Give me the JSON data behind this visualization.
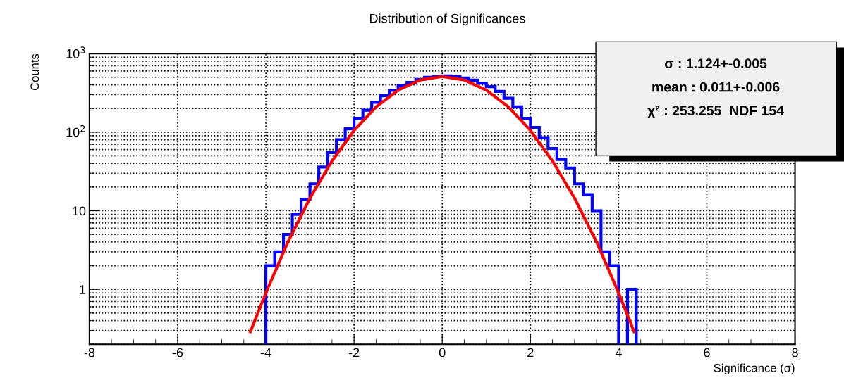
{
  "chart_data": {
    "type": "histogram",
    "title": "Distribution of Significances",
    "xlabel": "Significance (σ)",
    "ylabel": "Counts",
    "bins": [
      -4.0,
      -3.8,
      -3.6,
      -3.4,
      -3.2,
      -3.0,
      -2.8,
      -2.6,
      -2.4,
      -2.2,
      -2.0,
      -1.8,
      -1.6,
      -1.4,
      -1.2,
      -1.0,
      -0.8,
      -0.6,
      -0.4,
      -0.2,
      0.0,
      0.2,
      0.4,
      0.6,
      0.8,
      1.0,
      1.2,
      1.4,
      1.6,
      1.8,
      2.0,
      2.2,
      2.4,
      2.6,
      2.8,
      3.0,
      3.2,
      3.4,
      3.6,
      3.8,
      4.0,
      4.2,
      4.4
    ],
    "values": [
      2,
      3,
      5,
      9,
      14,
      22,
      36,
      55,
      80,
      110,
      150,
      190,
      240,
      290,
      340,
      390,
      430,
      470,
      500,
      510,
      520,
      510,
      490,
      460,
      420,
      380,
      330,
      270,
      210,
      150,
      115,
      85,
      62,
      45,
      35,
      22,
      16,
      10,
      3,
      2,
      null,
      1
    ],
    "color": "#0000ff",
    "series": [
      {
        "type": "line",
        "color": "#ff0000",
        "x": [
          -4.35,
          -4.0,
          -3.5,
          -3.0,
          -2.5,
          -2.0,
          -1.5,
          -1.0,
          -0.5,
          0.0,
          0.5,
          1.0,
          1.5,
          2.0,
          2.5,
          3.0,
          3.5,
          4.0,
          4.35
        ],
        "values": [
          0.29,
          0.9,
          4,
          14.5,
          43,
          105,
          210,
          343,
          462,
          510,
          462,
          343,
          210,
          105,
          43,
          14.5,
          4,
          0.9,
          0.29
        ]
      }
    ],
    "log": "y",
    "xlim": [
      -8,
      8
    ],
    "ylim": [
      0.2,
      1000
    ],
    "xticks": [
      -8,
      -6,
      -4,
      -2,
      0,
      2,
      4,
      6,
      8
    ],
    "yticks": [
      1,
      10,
      {
        "value": 100,
        "label": "10$^{2}$"
      },
      {
        "value": 1000,
        "label": "10$^{3}$"
      }
    ],
    "grid": true,
    "annotations": [
      "σ : 1.124+-0.005",
      "mean : 0.011+-0.006",
      "χ² : 253.255  NDF 154"
    ]
  }
}
